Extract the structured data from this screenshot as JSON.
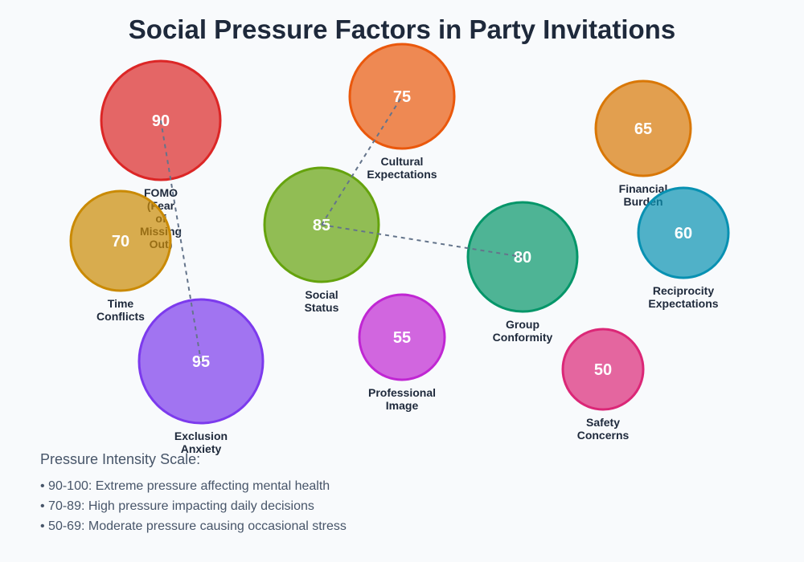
{
  "title": "Social Pressure Factors in Party Invitations",
  "nodes": [
    {
      "id": "fomo",
      "value": 90,
      "label": [
        "FOMO",
        "(Fear",
        "of",
        "Missing",
        "Out)"
      ],
      "color": "#dc2626"
    },
    {
      "id": "time",
      "value": 70,
      "label": [
        "Time",
        "Conflicts"
      ],
      "color": "#ca8a04"
    },
    {
      "id": "exclusion",
      "value": 95,
      "label": [
        "Exclusion",
        "Anxiety"
      ],
      "color": "#7c3aed"
    },
    {
      "id": "social",
      "value": 85,
      "label": [
        "Social",
        "Status"
      ],
      "color": "#65a30d"
    },
    {
      "id": "cultural",
      "value": 75,
      "label": [
        "Cultural",
        "Expectations"
      ],
      "color": "#ea580c"
    },
    {
      "id": "professional",
      "value": 55,
      "label": [
        "Professional",
        "Image"
      ],
      "color": "#c026d3"
    },
    {
      "id": "group",
      "value": 80,
      "label": [
        "Group",
        "Conformity"
      ],
      "color": "#059669"
    },
    {
      "id": "financial",
      "value": 65,
      "label": [
        "Financial",
        "Burden"
      ],
      "color": "#d97706"
    },
    {
      "id": "reciprocity",
      "value": 60,
      "label": [
        "Reciprocity",
        "Expectations"
      ],
      "color": "#0891b2"
    },
    {
      "id": "safety",
      "value": 50,
      "label": [
        "Safety",
        "Concerns"
      ],
      "color": "#db2777"
    }
  ],
  "links": [
    [
      "fomo",
      "exclusion"
    ],
    [
      "social",
      "cultural"
    ],
    [
      "social",
      "group"
    ]
  ],
  "legend": {
    "title": "Pressure Intensity Scale:",
    "items": [
      "• 90-100: Extreme pressure affecting mental health",
      "• 70-89: High pressure impacting daily decisions",
      "• 50-69: Moderate pressure causing occasional stress"
    ]
  }
}
